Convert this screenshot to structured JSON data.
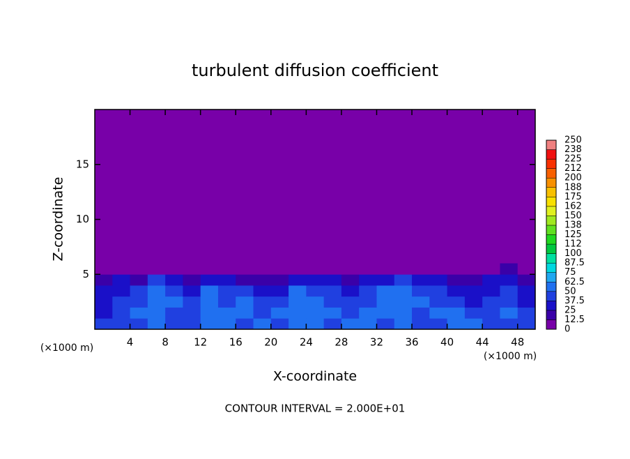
{
  "chart_data": {
    "type": "contour",
    "title": "turbulent diffusion coefficient",
    "x_label": "X-coordinate",
    "y_label": "Z-coordinate",
    "x_unit_label": "(×1000 m)",
    "annotation": "CONTOUR INTERVAL = 2.000E+01",
    "xlim": [
      0,
      50
    ],
    "ylim": [
      0,
      20
    ],
    "xticks": [
      4,
      8,
      12,
      16,
      20,
      24,
      28,
      32,
      36,
      40,
      44,
      48
    ],
    "yticks": [
      5,
      10,
      15
    ],
    "field": {
      "x": [
        0,
        2,
        4,
        6,
        8,
        10,
        12,
        14,
        16,
        18,
        20,
        22,
        24,
        26,
        28,
        30,
        32,
        34,
        36,
        38,
        40,
        42,
        44,
        46,
        48,
        50
      ],
      "z": [
        0,
        1,
        2,
        3,
        4,
        5,
        6
      ],
      "values": [
        [
          40,
          45,
          40,
          50,
          45,
          40,
          55,
          50,
          45,
          50,
          40,
          55,
          50,
          45,
          55,
          50,
          45,
          50,
          40,
          45,
          50,
          55,
          45,
          40,
          45
        ],
        [
          35,
          45,
          50,
          55,
          40,
          45,
          60,
          50,
          55,
          45,
          50,
          60,
          55,
          50,
          45,
          55,
          60,
          50,
          45,
          50,
          55,
          40,
          45,
          50,
          40
        ],
        [
          30,
          40,
          45,
          55,
          50,
          40,
          55,
          45,
          60,
          40,
          45,
          55,
          50,
          45,
          40,
          45,
          55,
          60,
          50,
          45,
          40,
          35,
          40,
          45,
          35
        ],
        [
          25,
          30,
          40,
          55,
          45,
          35,
          50,
          40,
          45,
          30,
          35,
          50,
          45,
          40,
          35,
          40,
          50,
          55,
          45,
          40,
          35,
          30,
          35,
          40,
          30
        ],
        [
          20,
          25,
          15,
          40,
          30,
          20,
          35,
          25,
          20,
          15,
          20,
          35,
          30,
          25,
          20,
          25,
          30,
          40,
          35,
          30,
          20,
          15,
          25,
          35,
          20
        ],
        [
          0,
          10,
          0,
          5,
          10,
          0,
          5,
          0,
          0,
          0,
          0,
          5,
          0,
          0,
          0,
          0,
          0,
          10,
          0,
          0,
          0,
          0,
          0,
          15,
          0
        ]
      ]
    },
    "colorbar": {
      "levels": [
        0,
        12.5,
        25,
        37.5,
        50,
        62.5,
        75,
        87.5,
        100,
        112,
        125,
        138,
        150,
        162,
        175,
        188,
        200,
        212,
        225,
        238,
        250
      ],
      "colors": [
        "#7800a8",
        "#3a00a8",
        "#1a10c8",
        "#2040e0",
        "#2070f0",
        "#20a8f0",
        "#00d8e0",
        "#00e0a0",
        "#00c840",
        "#20d820",
        "#60e020",
        "#a0e820",
        "#e0f020",
        "#f8e000",
        "#f8c000",
        "#f89000",
        "#f86000",
        "#f83000",
        "#f01010",
        "#f08080"
      ]
    }
  }
}
